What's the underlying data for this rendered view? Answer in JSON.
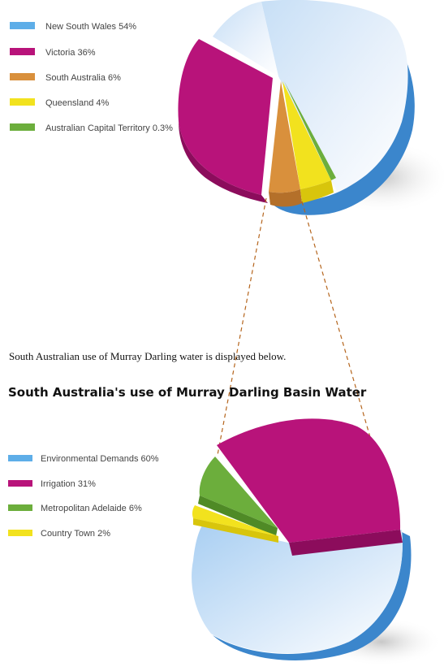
{
  "intro_text": "South Australian use of Murray Darling water is displayed below.",
  "chart_data": [
    {
      "type": "pie",
      "title": "",
      "categories": [
        "New South Wales",
        "Victoria",
        "South Australia",
        "Queensland",
        "Australian Capital Territory"
      ],
      "values": [
        54,
        36,
        6,
        4,
        0.3
      ],
      "unit": "%",
      "legend_labels": [
        "New South Wales 54%",
        "Victoria 36%",
        "South Australia 6%",
        "Queensland 4%",
        "Australian Capital Territory 0.3%"
      ],
      "colors": [
        "#5eaee8",
        "#b8137a",
        "#d9903c",
        "#f2e21e",
        "#6cae3c"
      ],
      "exploded": [
        "Victoria"
      ],
      "legend_position": "top-left"
    },
    {
      "type": "pie",
      "title": "South Australia's use of Murray Darling Basin Water",
      "categories": [
        "Environmental Demands",
        "Irrigation",
        "Metropolitan Adelaide",
        "Country Town"
      ],
      "values": [
        60,
        31,
        6,
        2
      ],
      "unit": "%",
      "legend_labels": [
        "Environmental Demands 60%",
        "Irrigation 31%",
        "Metropolitan Adelaide 6%",
        "Country Town 2%"
      ],
      "colors": [
        "#5eaee8",
        "#b8137a",
        "#6cae3c",
        "#f2e21e"
      ],
      "exploded": [
        "Irrigation",
        "Metropolitan Adelaide",
        "Country Town"
      ],
      "legend_position": "left"
    }
  ]
}
